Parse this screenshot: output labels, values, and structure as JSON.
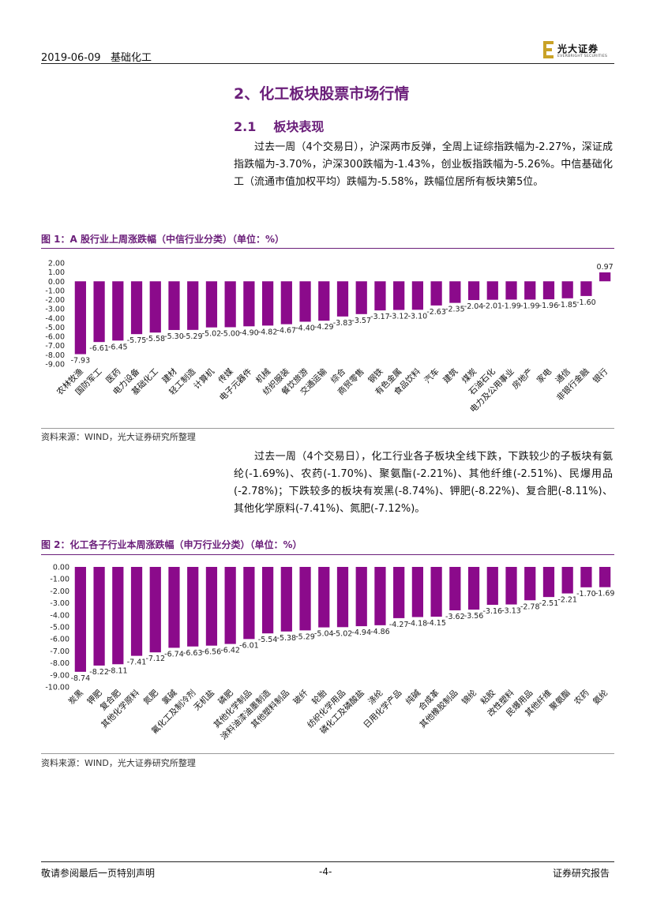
{
  "header": {
    "date": "2019-06-09",
    "section": "基础化工",
    "logo_cn": "光大证券",
    "logo_en": "EVERBRIGHT SECURITIES"
  },
  "section_title": "2、化工板块股票市场行情",
  "subsection": {
    "number": "2.1",
    "title": "板块表现"
  },
  "paragraph1": "过去一周（4个交易日），沪深两市反弹，全周上证综指跌幅为-2.27%，深证成指跌幅为-3.70%，沪深300跌幅为-1.43%，创业板指跌幅为-5.26%。中信基础化工（流通市值加权平均）跌幅为-5.58%，跌幅位居所有板块第5位。",
  "paragraph2": "过去一周（4个交易日），化工行业各子板块全线下跌，下跌较少的子板块有氨纶(-1.69%)、农药(-1.70%)、聚氨酯(-2.21%)、其他纤维(-2.51%)、民爆用品(-2.78%)；下跌较多的板块有炭黑(-8.74%)、钾肥(-8.22%)、复合肥(-8.11%)、其他化学原料(-7.41%)、氮肥(-7.12%)。",
  "figure1": {
    "title": "图 1：A 股行业上周涨跌幅（中信行业分类）（单位：%）",
    "source": "资料来源：WIND，光大证券研究所整理"
  },
  "figure2": {
    "title": "图 2：化工各子行业本周涨跌幅（申万行业分类）（单位：%）",
    "source": "资料来源：WIND，光大证券研究所整理"
  },
  "footer": {
    "left": "敬请参阅最后一页特别声明",
    "page": "-4-",
    "right": "证券研究报告"
  },
  "colors": {
    "bar": "#8b0a8b",
    "accent": "#6b1f7a"
  },
  "chart_data": [
    {
      "type": "bar",
      "title": "A股行业上周涨跌幅（中信行业分类）（单位：%）",
      "ylim": [
        -9,
        2
      ],
      "yticks": [
        "2.00",
        "1.00",
        "0.00",
        "-1.00",
        "-2.00",
        "-3.00",
        "-4.00",
        "-5.00",
        "-6.00",
        "-7.00",
        "-8.00",
        "-9.00"
      ],
      "categories": [
        "农林牧渔",
        "国防军工",
        "医药",
        "电力设备",
        "基础化工",
        "建材",
        "轻工制造",
        "计算机",
        "传媒",
        "电子元器件",
        "机械",
        "纺织服装",
        "餐饮旅游",
        "交通运输",
        "综合",
        "商贸零售",
        "钢铁",
        "有色金属",
        "食品饮料",
        "汽车",
        "建筑",
        "煤炭",
        "石油石化",
        "电力及公用事业",
        "房地产",
        "家电",
        "通信",
        "非银行金融",
        "银行"
      ],
      "values": [
        -7.93,
        -6.61,
        -6.45,
        -5.75,
        -5.58,
        -5.3,
        -5.29,
        -5.02,
        -5.0,
        -4.9,
        -4.82,
        -4.67,
        -4.4,
        -4.29,
        -3.83,
        -3.57,
        -3.17,
        -3.12,
        -3.1,
        -2.63,
        -2.35,
        -2.04,
        -2.01,
        -1.99,
        -1.99,
        -1.96,
        -1.85,
        -1.6,
        0.97
      ]
    },
    {
      "type": "bar",
      "title": "化工各子行业本周涨跌幅（申万行业分类）（单位：%）",
      "ylim": [
        -10,
        0
      ],
      "yticks": [
        "0.00",
        "-1.00",
        "-2.00",
        "-3.00",
        "-4.00",
        "-5.00",
        "-6.00",
        "-7.00",
        "-8.00",
        "-9.00",
        "-10.00"
      ],
      "categories": [
        "炭黑",
        "钾肥",
        "复合肥",
        "其他化学原料",
        "氮肥",
        "氯碱",
        "氟化工及制冷剂",
        "无机盐",
        "磷肥",
        "其他化学制品",
        "涂料油漆油墨制造",
        "其他塑料制品",
        "玻纤",
        "轮胎",
        "纺织化学用品",
        "磷化工及磷酸盐",
        "涤纶",
        "日用化学产品",
        "纯碱",
        "合成革",
        "其他橡胶制品",
        "锦纶",
        "粘胶",
        "改性塑料",
        "民爆用品",
        "其他纤维",
        "聚氨酯",
        "农药",
        "氨纶"
      ],
      "values": [
        -8.74,
        -8.22,
        -8.11,
        -7.41,
        -7.12,
        -6.74,
        -6.63,
        -6.56,
        -6.42,
        -6.01,
        -5.54,
        -5.38,
        -5.29,
        -5.04,
        -5.02,
        -4.94,
        -4.86,
        -4.27,
        -4.18,
        -4.15,
        -3.62,
        -3.56,
        -3.16,
        -3.13,
        -2.78,
        -2.51,
        -2.21,
        -1.7,
        -1.69
      ]
    }
  ]
}
